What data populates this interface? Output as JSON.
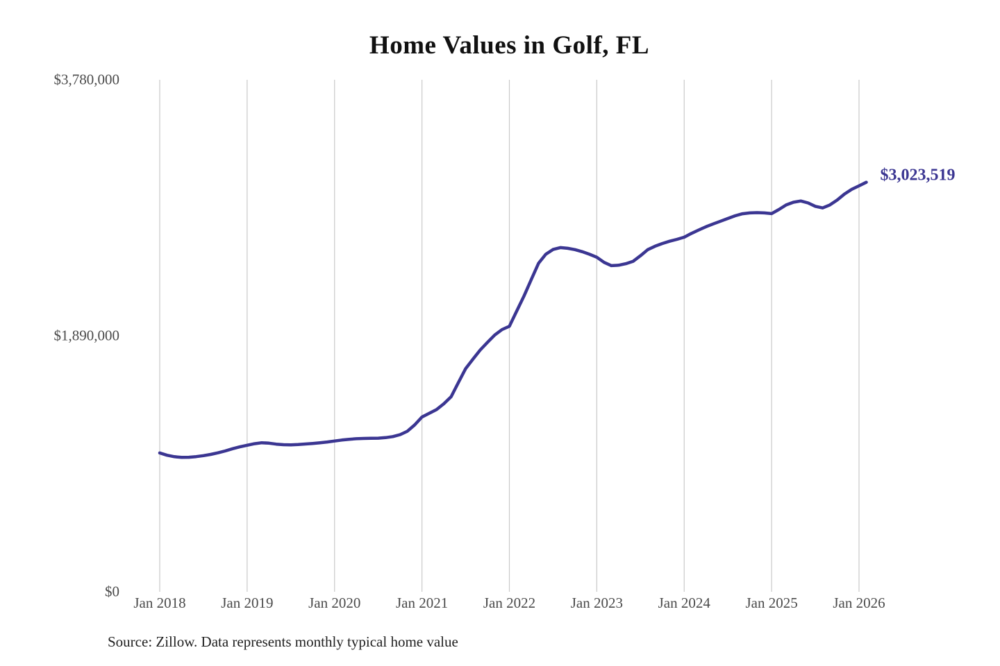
{
  "chart": {
    "title": "Home Values in Golf, FL",
    "end_label": "$3,023,519",
    "line_color": "#3b3692",
    "grid_color": "#c9c9c9",
    "axis_text_color": "#4a4a4a"
  },
  "footer": {
    "source": "Source: Zillow. Data represents monthly typical home value"
  },
  "chart_data": {
    "type": "line",
    "title": "Home Values in Golf, FL",
    "xlabel": "",
    "ylabel": "",
    "ylim": [
      0,
      3780000
    ],
    "y_ticks": [
      {
        "value": 3780000,
        "label": "$3,780,000"
      },
      {
        "value": 1890000,
        "label": "$1,890,000"
      },
      {
        "value": 0,
        "label": "$0"
      }
    ],
    "x_ticks": [
      "Jan 2018",
      "Jan 2019",
      "Jan 2020",
      "Jan 2021",
      "Jan 2022",
      "Jan 2023",
      "Jan 2024",
      "Jan 2025",
      "Jan 2026"
    ],
    "grid": "vertical-only",
    "legend": "none",
    "annotation": {
      "text": "$3,023,519",
      "attached_to": "last-point"
    },
    "series": [
      {
        "name": "Monthly typical home value",
        "x": [
          "2018-01",
          "2018-02",
          "2018-03",
          "2018-04",
          "2018-05",
          "2018-06",
          "2018-07",
          "2018-08",
          "2018-09",
          "2018-10",
          "2018-11",
          "2018-12",
          "2019-01",
          "2019-02",
          "2019-03",
          "2019-04",
          "2019-05",
          "2019-06",
          "2019-07",
          "2019-08",
          "2019-09",
          "2019-10",
          "2019-11",
          "2019-12",
          "2020-01",
          "2020-02",
          "2020-03",
          "2020-04",
          "2020-05",
          "2020-06",
          "2020-07",
          "2020-08",
          "2020-09",
          "2020-10",
          "2020-11",
          "2020-12",
          "2021-01",
          "2021-02",
          "2021-03",
          "2021-04",
          "2021-05",
          "2021-06",
          "2021-07",
          "2021-08",
          "2021-09",
          "2021-10",
          "2021-11",
          "2021-12",
          "2022-01",
          "2022-02",
          "2022-03",
          "2022-04",
          "2022-05",
          "2022-06",
          "2022-07",
          "2022-08",
          "2022-09",
          "2022-10",
          "2022-11",
          "2022-12",
          "2023-01",
          "2023-02",
          "2023-03",
          "2023-04",
          "2023-05",
          "2023-06",
          "2023-07",
          "2023-08",
          "2023-09",
          "2023-10",
          "2023-11",
          "2023-12",
          "2024-01",
          "2024-02",
          "2024-03",
          "2024-04",
          "2024-05",
          "2024-06",
          "2024-07",
          "2024-08",
          "2024-09",
          "2024-10",
          "2024-11",
          "2024-12",
          "2025-01",
          "2025-02",
          "2025-03",
          "2025-04",
          "2025-05",
          "2025-06",
          "2025-07",
          "2025-08",
          "2025-09",
          "2025-10",
          "2025-11",
          "2025-12",
          "2026-01",
          "2026-02"
        ],
        "values": [
          1025000,
          1008000,
          997000,
          992000,
          993000,
          998000,
          1005000,
          1014000,
          1026000,
          1040000,
          1056000,
          1070000,
          1082000,
          1093000,
          1100000,
          1097000,
          1090000,
          1086000,
          1085000,
          1087000,
          1091000,
          1095000,
          1100000,
          1106000,
          1113000,
          1120000,
          1126000,
          1130000,
          1132000,
          1133000,
          1134000,
          1138000,
          1146000,
          1160000,
          1185000,
          1232000,
          1290000,
          1318000,
          1345000,
          1388000,
          1440000,
          1545000,
          1648000,
          1718000,
          1785000,
          1842000,
          1896000,
          1936000,
          1960000,
          2072000,
          2183000,
          2305000,
          2425000,
          2492000,
          2527000,
          2541000,
          2536000,
          2526000,
          2511000,
          2492000,
          2470000,
          2432000,
          2408000,
          2411000,
          2422000,
          2440000,
          2481000,
          2526000,
          2551000,
          2571000,
          2588000,
          2602000,
          2618000,
          2646000,
          2671000,
          2695000,
          2716000,
          2736000,
          2756000,
          2776000,
          2791000,
          2797000,
          2799000,
          2797000,
          2792000,
          2822000,
          2856000,
          2876000,
          2885000,
          2871000,
          2846000,
          2834000,
          2856000,
          2892000,
          2936000,
          2971000,
          2997000,
          3023519
        ]
      }
    ]
  }
}
